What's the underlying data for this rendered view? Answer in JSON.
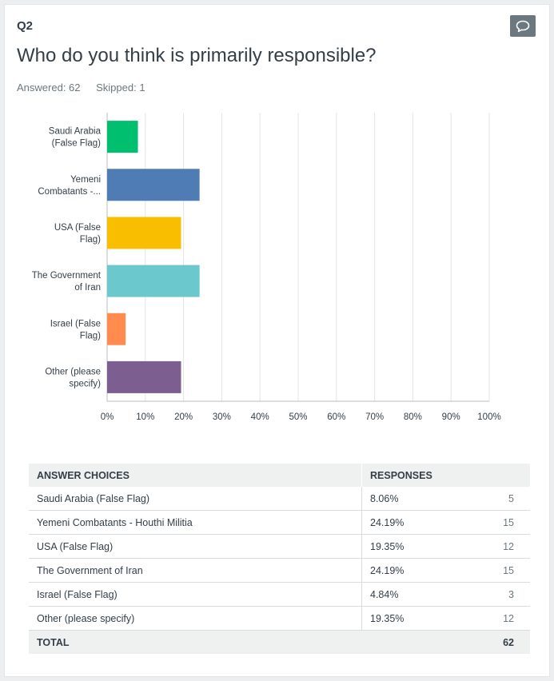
{
  "question": {
    "number": "Q2",
    "title": "Who do you think is primarily responsible?",
    "answered": "Answered: 62",
    "skipped": "Skipped: 1"
  },
  "icons": {
    "comment": "comment-icon"
  },
  "colors": {
    "bars": [
      "#00bf6f",
      "#507cb6",
      "#f9be00",
      "#6bc8cd",
      "#ff8b4f",
      "#7d5e90"
    ],
    "grid": "#e3e5e6",
    "axis": "#b8bdc1"
  },
  "chart_data": {
    "type": "bar",
    "orientation": "horizontal",
    "categories_display": [
      [
        "Saudi Arabia",
        "(False Flag)"
      ],
      [
        "Yemeni",
        "Combatants -..."
      ],
      [
        "USA (False",
        "Flag)"
      ],
      [
        "The Government",
        "of Iran"
      ],
      [
        "Israel (False",
        "Flag)"
      ],
      [
        "Other (please",
        "specify)"
      ]
    ],
    "categories": [
      "Saudi Arabia (False Flag)",
      "Yemeni Combatants - Houthi Militia",
      "USA (False Flag)",
      "The Government of Iran",
      "Israel (False Flag)",
      "Other (please specify)"
    ],
    "values": [
      8.06,
      24.19,
      19.35,
      24.19,
      4.84,
      19.35
    ],
    "xlim": [
      0,
      100
    ],
    "xticks": [
      "0%",
      "10%",
      "20%",
      "30%",
      "40%",
      "50%",
      "60%",
      "70%",
      "80%",
      "90%",
      "100%"
    ],
    "grid": true
  },
  "table": {
    "headers": {
      "choices": "ANSWER CHOICES",
      "responses": "RESPONSES"
    },
    "rows": [
      {
        "choice": "Saudi Arabia (False Flag)",
        "percent": "8.06%",
        "count": "5"
      },
      {
        "choice": "Yemeni Combatants - Houthi Militia",
        "percent": "24.19%",
        "count": "15"
      },
      {
        "choice": "USA (False Flag)",
        "percent": "19.35%",
        "count": "12"
      },
      {
        "choice": "The Government of Iran",
        "percent": "24.19%",
        "count": "15"
      },
      {
        "choice": "Israel (False Flag)",
        "percent": "4.84%",
        "count": "3"
      },
      {
        "choice": "Other (please specify)",
        "percent": "19.35%",
        "count": "12"
      }
    ],
    "total_label": "TOTAL",
    "total_count": "62"
  }
}
